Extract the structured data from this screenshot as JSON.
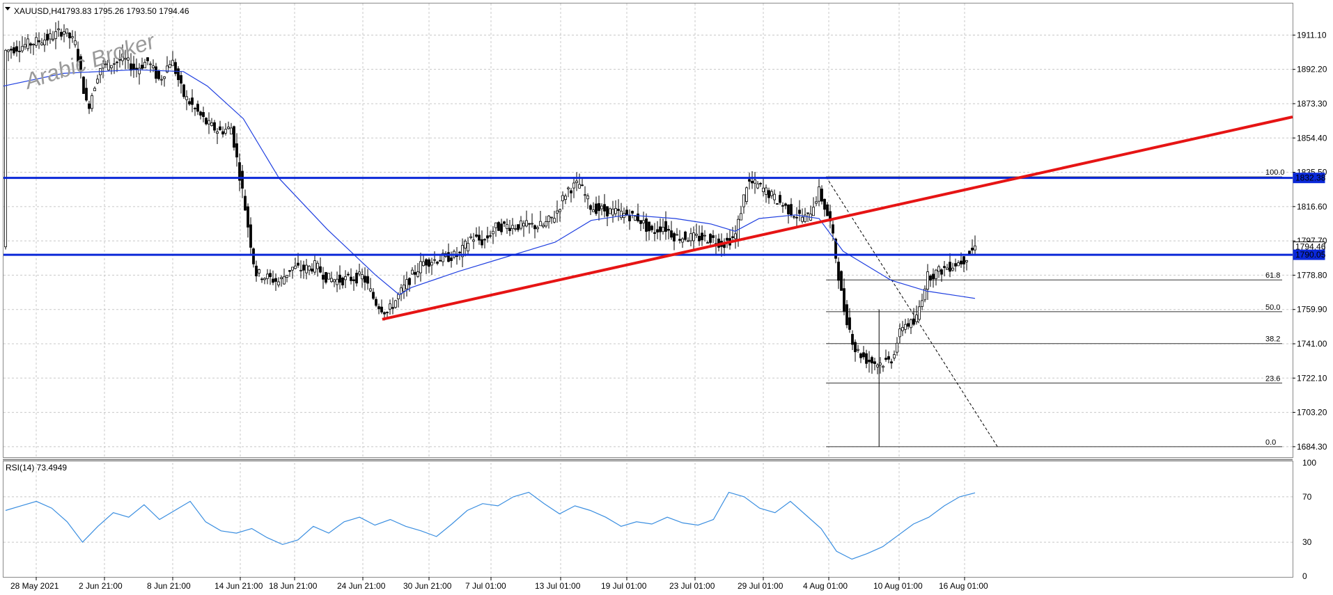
{
  "header": {
    "symbol": "XAUUSD,H4",
    "ohlc": "1793.83 1795.26 1793.50 1794.46"
  },
  "watermark": "Arabic Broker",
  "rsi_header": "RSI(14) 73.4949",
  "colors": {
    "candle": "#000000",
    "ma": "#1f3fe0",
    "rsi": "#3a8ee0",
    "trendline": "#e61414",
    "hline": "#0a28d8",
    "price_tag_bg": "#0a28d8",
    "price_tag_text": "#ffffff"
  },
  "chart_data": [
    {
      "type": "candlestick",
      "title": "XAUUSD,H4",
      "x_ticks": [
        "28 May 2021",
        "2 Jun 21:00",
        "8 Jun 21:00",
        "14 Jun 21:00",
        "18 Jun 21:00",
        "24 Jun 21:00",
        "30 Jun 21:00",
        "7 Jul 01:00",
        "13 Jul 01:00",
        "19 Jul 01:00",
        "23 Jul 01:00",
        "29 Jul 01:00",
        "4 Aug 01:00",
        "10 Aug 01:00",
        "16 Aug 01:00"
      ],
      "y_ticks": [
        "1911.10",
        "1892.20",
        "1873.30",
        "1854.40",
        "1835.50",
        "1816.60",
        "1797.70",
        "1778.80",
        "1759.90",
        "1741.00",
        "1722.10",
        "1703.20",
        "1684.30"
      ],
      "ylim": [
        1678.5,
        1928.5
      ],
      "path_points": [
        [
          "28 May 2021",
          1902
        ],
        [
          "1 Jun",
          1910
        ],
        [
          "2 Jun",
          1914
        ],
        [
          "3 Jun",
          1906
        ],
        [
          "4 Jun",
          1870
        ],
        [
          "5 Jun",
          1893
        ],
        [
          "7 Jun",
          1898
        ],
        [
          "8 Jun",
          1892
        ],
        [
          "9 Jun",
          1897
        ],
        [
          "10 Jun",
          1886
        ],
        [
          "11 Jun",
          1898
        ],
        [
          "12 Jun",
          1878
        ],
        [
          "14 Jun",
          1862
        ],
        [
          "15 Jun",
          1858
        ],
        [
          "16 Jun",
          1860
        ],
        [
          "17 Jun",
          1822
        ],
        [
          "18 Jun",
          1780
        ],
        [
          "20 Jun",
          1775
        ],
        [
          "21 Jun",
          1783
        ],
        [
          "22 Jun",
          1782
        ],
        [
          "23 Jun",
          1784
        ],
        [
          "24 Jun",
          1777
        ],
        [
          "25 Jun",
          1776
        ],
        [
          "27 Jun",
          1778
        ],
        [
          "28 Jun",
          1764
        ],
        [
          "29 Jun",
          1758
        ],
        [
          "30 Jun",
          1768
        ],
        [
          "1 Jul",
          1778
        ],
        [
          "2 Jul",
          1786
        ],
        [
          "5 Jul",
          1790
        ],
        [
          "6 Jul",
          1800
        ],
        [
          "7 Jul",
          1797
        ],
        [
          "8 Jul",
          1805
        ],
        [
          "9 Jul",
          1806
        ],
        [
          "12 Jul",
          1806
        ],
        [
          "13 Jul",
          1812
        ],
        [
          "14 Jul",
          1826
        ],
        [
          "15 Jul",
          1829
        ],
        [
          "16 Jul",
          1816
        ],
        [
          "19 Jul",
          1812
        ],
        [
          "20 Jul",
          1810
        ],
        [
          "21 Jul",
          1802
        ],
        [
          "22 Jul",
          1806
        ],
        [
          "23 Jul",
          1800
        ],
        [
          "26 Jul",
          1799
        ],
        [
          "27 Jul",
          1796
        ],
        [
          "28 Jul",
          1800
        ],
        [
          "29 Jul",
          1830
        ],
        [
          "30 Jul",
          1828
        ],
        [
          "2 Aug",
          1812
        ],
        [
          "3 Aug",
          1810
        ],
        [
          "4 Aug",
          1825
        ],
        [
          "5 Aug",
          1806
        ],
        [
          "6 Aug",
          1762
        ],
        [
          "7 Aug",
          1738
        ],
        [
          "8 Aug",
          1732
        ],
        [
          "9 Aug",
          1730
        ],
        [
          "10 Aug",
          1732
        ],
        [
          "11 Aug",
          1752
        ],
        [
          "12 Aug",
          1752
        ],
        [
          "13 Aug",
          1778
        ],
        [
          "15 Aug",
          1784
        ],
        [
          "16 Aug",
          1787
        ],
        [
          "17 Aug",
          1794.46
        ]
      ],
      "ma_points": [
        [
          "28 May 2021",
          1883
        ],
        [
          "2 Jun",
          1890
        ],
        [
          "8 Jun",
          1892
        ],
        [
          "12 Jun",
          1891
        ],
        [
          "14 Jun",
          1883
        ],
        [
          "17 Jun",
          1865
        ],
        [
          "20 Jun",
          1832
        ],
        [
          "24 Jun",
          1804
        ],
        [
          "28 Jun",
          1779
        ],
        [
          "30 Jun",
          1768
        ],
        [
          "1 Jul",
          1772
        ],
        [
          "5 Jul",
          1781
        ],
        [
          "8 Jul",
          1787
        ],
        [
          "13 Jul",
          1797
        ],
        [
          "16 Jul",
          1809
        ],
        [
          "19 Jul",
          1812
        ],
        [
          "23 Jul",
          1810
        ],
        [
          "26 Jul",
          1807
        ],
        [
          "28 Jul",
          1803
        ],
        [
          "30 Jul",
          1810
        ],
        [
          "2 Aug",
          1812
        ],
        [
          "4 Aug",
          1810
        ],
        [
          "6 Aug",
          1792
        ],
        [
          "10 Aug",
          1776
        ],
        [
          "13 Aug",
          1770
        ],
        [
          "16 Aug",
          1767
        ],
        [
          "17 Aug",
          1766
        ]
      ],
      "horizontal_lines": [
        1832.38,
        1790.05
      ],
      "price_labels": [
        {
          "value": 1832.38,
          "text": "1832.38",
          "style": "blue"
        },
        {
          "value": 1794.46,
          "text": "1794.46",
          "style": "white"
        },
        {
          "value": 1790.05,
          "text": "1790.05",
          "style": "blue"
        }
      ],
      "trendline": {
        "from": [
          "28 Jun",
          1754.5
        ],
        "to": [
          "right edge",
          1866.0
        ]
      },
      "fibonacci": {
        "high": [
          "4 Aug",
          1833.0
        ],
        "low": [
          "9 Aug",
          1684.3
        ],
        "levels": [
          {
            "label": "100.0",
            "value": 1833.0
          },
          {
            "label": "61.8",
            "value": 1776.2
          },
          {
            "label": "50.0",
            "value": 1758.7
          },
          {
            "label": "38.2",
            "value": 1741.1
          },
          {
            "label": "23.6",
            "value": 1719.4
          },
          {
            "label": "0.0",
            "value": 1684.3
          }
        ]
      },
      "lowest_wick": {
        "date": "9 Aug",
        "value": 1684.3
      }
    },
    {
      "type": "line",
      "title": "RSI(14) 73.4949",
      "y_ticks": [
        "100",
        "70",
        "30",
        "0"
      ],
      "ylim": [
        0,
        100
      ],
      "values": [
        58,
        62,
        66,
        60,
        48,
        30,
        44,
        56,
        52,
        63,
        50,
        58,
        66,
        48,
        40,
        38,
        42,
        34,
        28,
        32,
        44,
        38,
        48,
        52,
        45,
        50,
        44,
        40,
        35,
        46,
        58,
        64,
        62,
        70,
        74,
        64,
        55,
        62,
        58,
        52,
        44,
        48,
        46,
        52,
        47,
        45,
        50,
        74,
        70,
        60,
        56,
        66,
        54,
        42,
        22,
        15,
        20,
        26,
        36,
        46,
        52,
        62,
        70,
        73.49
      ]
    }
  ]
}
